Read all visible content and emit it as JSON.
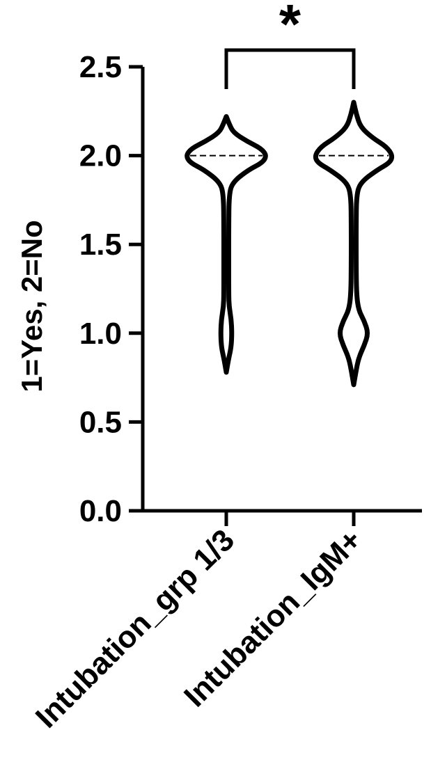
{
  "chart_data": {
    "type": "violin",
    "ylabel": "1=Yes, 2=No",
    "ylim": [
      0,
      2.5
    ],
    "yticks": [
      "0.0",
      "0.5",
      "1.0",
      "1.5",
      "2.0",
      "2.5"
    ],
    "ytick_values": [
      0,
      0.5,
      1.0,
      1.5,
      2.0,
      2.5
    ],
    "categories": [
      "Intubation_grp 1/3",
      "Intubation_IgM+"
    ],
    "series": [
      {
        "category": "Intubation_grp 1/3",
        "min": 0.78,
        "max": 2.22,
        "median": 2.0,
        "density": [
          [
            0.78,
            0.0
          ],
          [
            0.85,
            0.03
          ],
          [
            0.92,
            0.07
          ],
          [
            1.0,
            0.08
          ],
          [
            1.08,
            0.07
          ],
          [
            1.15,
            0.04
          ],
          [
            1.22,
            0.035
          ],
          [
            1.4,
            0.035
          ],
          [
            1.6,
            0.035
          ],
          [
            1.78,
            0.04
          ],
          [
            1.85,
            0.09
          ],
          [
            1.92,
            0.32
          ],
          [
            1.96,
            0.52
          ],
          [
            2.0,
            0.58
          ],
          [
            2.04,
            0.5
          ],
          [
            2.08,
            0.3
          ],
          [
            2.13,
            0.1
          ],
          [
            2.18,
            0.04
          ],
          [
            2.22,
            0.0
          ]
        ]
      },
      {
        "category": "Intubation_IgM+",
        "min": 0.71,
        "max": 2.3,
        "median": 2.0,
        "density": [
          [
            0.71,
            0.0
          ],
          [
            0.78,
            0.03
          ],
          [
            0.86,
            0.07
          ],
          [
            0.93,
            0.15
          ],
          [
            1.0,
            0.21
          ],
          [
            1.07,
            0.15
          ],
          [
            1.13,
            0.07
          ],
          [
            1.22,
            0.04
          ],
          [
            1.4,
            0.035
          ],
          [
            1.6,
            0.035
          ],
          [
            1.78,
            0.04
          ],
          [
            1.85,
            0.1
          ],
          [
            1.92,
            0.34
          ],
          [
            1.96,
            0.52
          ],
          [
            2.0,
            0.56
          ],
          [
            2.05,
            0.47
          ],
          [
            2.1,
            0.27
          ],
          [
            2.16,
            0.1
          ],
          [
            2.23,
            0.04
          ],
          [
            2.3,
            0.0
          ]
        ]
      }
    ],
    "annotation": {
      "text": "*",
      "between": [
        "Intubation_grp 1/3",
        "Intubation_IgM+"
      ]
    },
    "grid": false,
    "legend": "none"
  },
  "colors": {
    "stroke": "#000000",
    "background": "#ffffff"
  }
}
